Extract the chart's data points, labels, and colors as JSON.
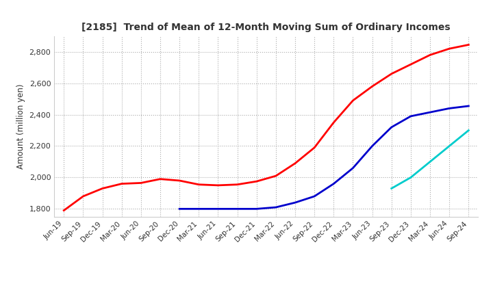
{
  "title": "[2185]  Trend of Mean of 12-Month Moving Sum of Ordinary Incomes",
  "ylabel": "Amount (million yen)",
  "line_colors": {
    "3yr": "#ff0000",
    "5yr": "#0000cc",
    "7yr": "#00cccc",
    "10yr": "#006600"
  },
  "x_labels": [
    "Jun-19",
    "Sep-19",
    "Dec-19",
    "Mar-20",
    "Jun-20",
    "Sep-20",
    "Dec-20",
    "Mar-21",
    "Jun-21",
    "Sep-21",
    "Dec-21",
    "Mar-22",
    "Jun-22",
    "Sep-22",
    "Dec-22",
    "Mar-23",
    "Jun-23",
    "Sep-23",
    "Dec-23",
    "Mar-24",
    "Jun-24",
    "Sep-24"
  ],
  "data_3yr": [
    1790,
    1880,
    1930,
    1960,
    1965,
    1990,
    1980,
    1955,
    1950,
    1955,
    1975,
    2010,
    2090,
    2190,
    2350,
    2490,
    2580,
    2660,
    2720,
    2780,
    2820,
    2845
  ],
  "data_5yr": [
    null,
    null,
    null,
    null,
    null,
    null,
    1800,
    1800,
    1800,
    1800,
    1800,
    1810,
    1840,
    1880,
    1960,
    2060,
    2200,
    2320,
    2390,
    2415,
    2440,
    2455
  ],
  "data_7yr": [
    null,
    null,
    null,
    null,
    null,
    null,
    null,
    null,
    null,
    null,
    null,
    null,
    null,
    null,
    null,
    null,
    null,
    1930,
    2000,
    2100,
    2200,
    2300
  ],
  "data_10yr": [
    null,
    null,
    null,
    null,
    null,
    null,
    null,
    null,
    null,
    null,
    null,
    null,
    null,
    null,
    null,
    null,
    null,
    null,
    null,
    null,
    null,
    null
  ],
  "ylim": [
    1750,
    2900
  ],
  "yticks": [
    1800,
    2000,
    2200,
    2400,
    2600,
    2800
  ],
  "background_color": "#ffffff",
  "grid_color": "#aaaaaa"
}
